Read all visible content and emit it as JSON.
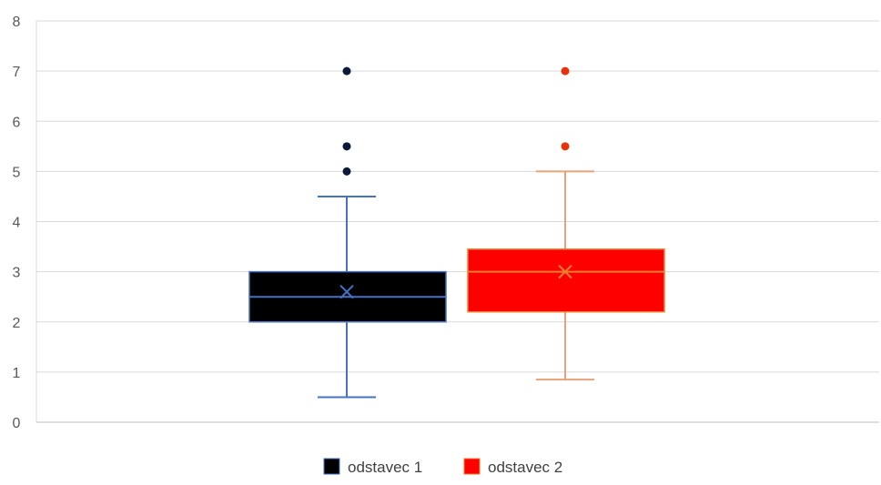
{
  "chart_data": {
    "type": "boxplot",
    "title": "",
    "xlabel": "",
    "ylabel": "",
    "ylim": [
      0,
      8
    ],
    "yticks": [
      0,
      1,
      2,
      3,
      4,
      5,
      6,
      7,
      8
    ],
    "grid": true,
    "legend_position": "bottom",
    "series": [
      {
        "name": "odstavec 1",
        "fill": "#000000",
        "stroke": "#4472C4",
        "whisker_color": "#4472C4",
        "outlier_color": "#0a1a3a",
        "min": 0.5,
        "q1": 2.0,
        "median": 2.5,
        "q3": 3.0,
        "max": 4.5,
        "mean": 2.6,
        "outliers": [
          5.0,
          5.5,
          7.0
        ]
      },
      {
        "name": "odstavec 2",
        "fill": "#FF0000",
        "stroke": "#ED7D31",
        "whisker_color": "#E8A27A",
        "outlier_color": "#E8300A",
        "min": 0.85,
        "q1": 2.2,
        "median": 3.0,
        "q3": 3.45,
        "max": 5.0,
        "mean": 3.0,
        "outliers": [
          5.5,
          7.0
        ]
      }
    ]
  }
}
